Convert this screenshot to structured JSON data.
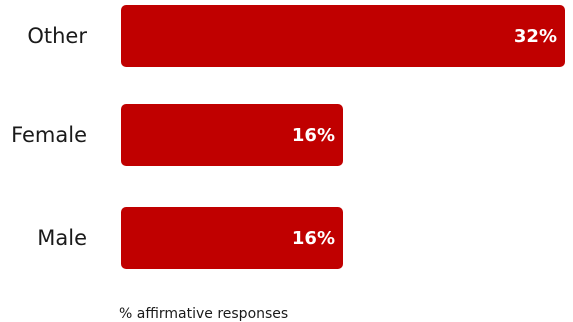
{
  "chart_data": {
    "type": "bar",
    "orientation": "horizontal",
    "categories": [
      "Other",
      "Female",
      "Male"
    ],
    "values": [
      32,
      16,
      16
    ],
    "value_labels": [
      "32%",
      "16%",
      "16%"
    ],
    "xlabel": "% affirmative responses",
    "xlim": [
      0,
      32
    ],
    "grid": false,
    "legend": "none",
    "bar_color": "#c00000",
    "value_label_color": "#ffffff"
  }
}
